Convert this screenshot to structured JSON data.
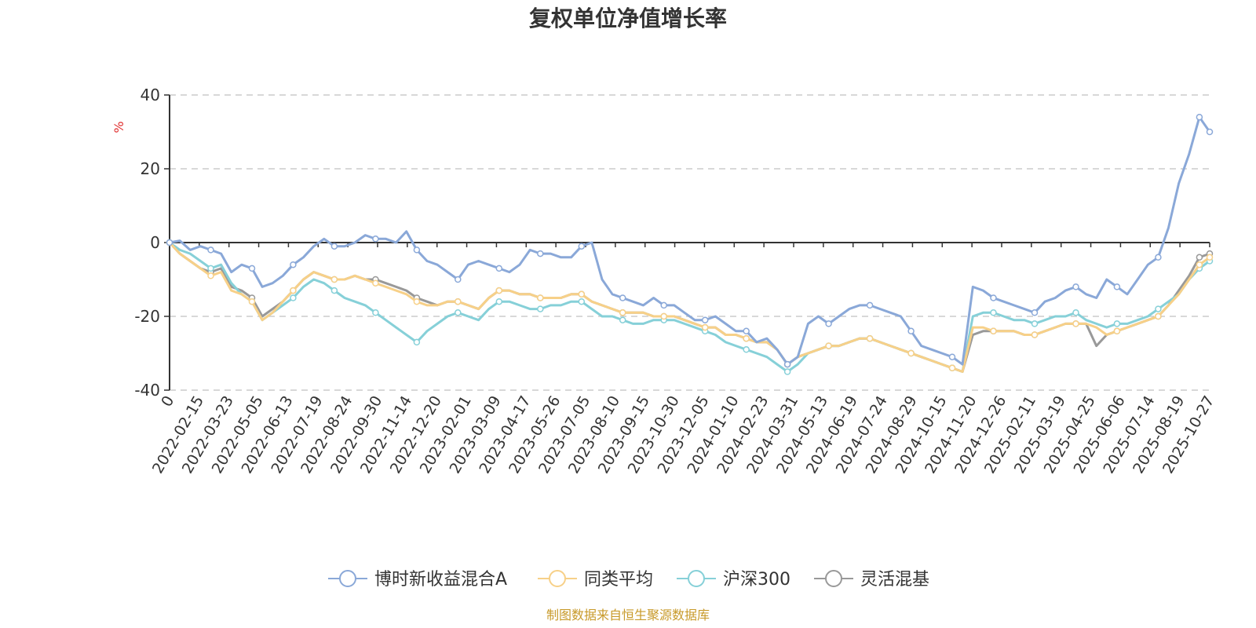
{
  "chart_data": {
    "type": "line",
    "title": "复权单位净值增长率",
    "y_unit": "%",
    "ylim": [
      -40,
      40
    ],
    "y_ticks": [
      40,
      20,
      0,
      -20,
      -40
    ],
    "grid": true,
    "legend_position": "bottom",
    "x_tick_labels": [
      "0",
      "2022-02-15",
      "2022-03-23",
      "2022-05-05",
      "2022-06-13",
      "2022-07-19",
      "2022-08-24",
      "2022-09-30",
      "2022-11-14",
      "2022-12-20",
      "2023-02-01",
      "2023-03-09",
      "2023-04-17",
      "2023-05-26",
      "2023-07-05",
      "2023-08-10",
      "2023-09-15",
      "2023-10-30",
      "2023-12-05",
      "2024-01-10",
      "2024-02-23",
      "2024-03-31",
      "2024-05-13",
      "2024-06-19",
      "2024-07-24",
      "2024-08-29",
      "2024-10-15",
      "2024-11-20",
      "2024-12-26",
      "2025-02-11",
      "2025-03-19",
      "2025-04-25",
      "2025-06-06",
      "2025-07-14",
      "2025-08-19",
      "2025-10-27"
    ],
    "series": [
      {
        "name": "博时新收益混合A",
        "color": "#8aa8d8",
        "values": [
          0,
          0.5,
          -2,
          -1,
          -2,
          -3,
          -8,
          -6,
          -7,
          -12,
          -11,
          -9,
          -6,
          -4,
          -1,
          1,
          -1,
          -1,
          0,
          2,
          1,
          1,
          0,
          3,
          -2,
          -5,
          -6,
          -8,
          -10,
          -6,
          -5,
          -6,
          -7,
          -8,
          -6,
          -2,
          -3,
          -3,
          -4,
          -4,
          -1,
          0,
          -10,
          -14,
          -15,
          -16,
          -17,
          -15,
          -17,
          -17,
          -19,
          -21,
          -21,
          -20,
          -22,
          -24,
          -24,
          -27,
          -26,
          -29,
          -33,
          -31,
          -22,
          -20,
          -22,
          -20,
          -18,
          -17,
          -17,
          -18,
          -19,
          -20,
          -24,
          -28,
          -29,
          -30,
          -31,
          -33,
          -12,
          -13,
          -15,
          -16,
          -17,
          -18,
          -19,
          -16,
          -15,
          -13,
          -12,
          -14,
          -15,
          -10,
          -12,
          -14,
          -10,
          -6,
          -4,
          4,
          16,
          24,
          34,
          30
        ]
      },
      {
        "name": "同类平均",
        "color": "#f7d088",
        "values": [
          0,
          -3,
          -5,
          -7,
          -9,
          -8,
          -13,
          -14,
          -16,
          -21,
          -19,
          -16,
          -13,
          -10,
          -8,
          -9,
          -10,
          -10,
          -9,
          -10,
          -11,
          -12,
          -13,
          -14,
          -16,
          -17,
          -17,
          -16,
          -16,
          -17,
          -18,
          -15,
          -13,
          -13,
          -14,
          -14,
          -15,
          -15,
          -15,
          -14,
          -14,
          -16,
          -17,
          -18,
          -19,
          -19,
          -19,
          -20,
          -20,
          -20,
          -21,
          -22,
          -23,
          -23,
          -25,
          -25,
          -26,
          -27,
          -27,
          -29,
          -33,
          -31,
          -30,
          -29,
          -28,
          -28,
          -27,
          -26,
          -26,
          -27,
          -28,
          -29,
          -30,
          -31,
          -32,
          -33,
          -34,
          -35,
          -23,
          -23,
          -24,
          -24,
          -24,
          -25,
          -25,
          -24,
          -23,
          -22,
          -22,
          -22,
          -23,
          -25,
          -24,
          -23,
          -22,
          -21,
          -20,
          -17,
          -14,
          -10,
          -6,
          -4
        ]
      },
      {
        "name": "沪深300",
        "color": "#86d0d8",
        "values": [
          0,
          -2,
          -3,
          -5,
          -7,
          -6,
          -11,
          -14,
          -16,
          -21,
          -19,
          -17,
          -15,
          -12,
          -10,
          -11,
          -13,
          -15,
          -16,
          -17,
          -19,
          -21,
          -23,
          -25,
          -27,
          -24,
          -22,
          -20,
          -19,
          -20,
          -21,
          -18,
          -16,
          -16,
          -17,
          -18,
          -18,
          -17,
          -17,
          -16,
          -16,
          -18,
          -20,
          -20,
          -21,
          -22,
          -22,
          -21,
          -21,
          -21,
          -22,
          -23,
          -24,
          -25,
          -27,
          -28,
          -29,
          -30,
          -31,
          -33,
          -35,
          -33,
          -30,
          -29,
          -28,
          -28,
          -27,
          -26,
          -26,
          -27,
          -28,
          -29,
          -30,
          -31,
          -32,
          -33,
          -34,
          -35,
          -20,
          -19,
          -19,
          -20,
          -21,
          -21,
          -22,
          -21,
          -20,
          -20,
          -19,
          -21,
          -22,
          -23,
          -22,
          -22,
          -21,
          -20,
          -18,
          -16,
          -14,
          -10,
          -7,
          -5
        ]
      },
      {
        "name": "灵活混基",
        "color": "#999999",
        "values": [
          0,
          -3,
          -5,
          -7,
          -8,
          -7,
          -12,
          -13,
          -15,
          -20,
          -18,
          -16,
          -13,
          -10,
          -8,
          -9,
          -10,
          -10,
          -9,
          -10,
          -10,
          -11,
          -12,
          -13,
          -15,
          -16,
          -17,
          -16,
          -16,
          -17,
          -18,
          -15,
          -13,
          -13,
          -14,
          -14,
          -15,
          -15,
          -15,
          -14,
          -14,
          -16,
          -17,
          -18,
          -19,
          -19,
          -19,
          -20,
          -20,
          -20,
          -21,
          -22,
          -23,
          -23,
          -25,
          -25,
          -26,
          -27,
          -27,
          -29,
          -33,
          -31,
          -30,
          -29,
          -28,
          -28,
          -27,
          -26,
          -26,
          -27,
          -28,
          -29,
          -30,
          -31,
          -32,
          -33,
          -34,
          -35,
          -25,
          -24,
          -24,
          -24,
          -24,
          -25,
          -25,
          -24,
          -23,
          -22,
          -22,
          -22,
          -28,
          -25,
          -24,
          -23,
          -22,
          -21,
          -20,
          -17,
          -13,
          -9,
          -4,
          -3
        ]
      }
    ]
  },
  "source_note": "制图数据来自恒生聚源数据库"
}
